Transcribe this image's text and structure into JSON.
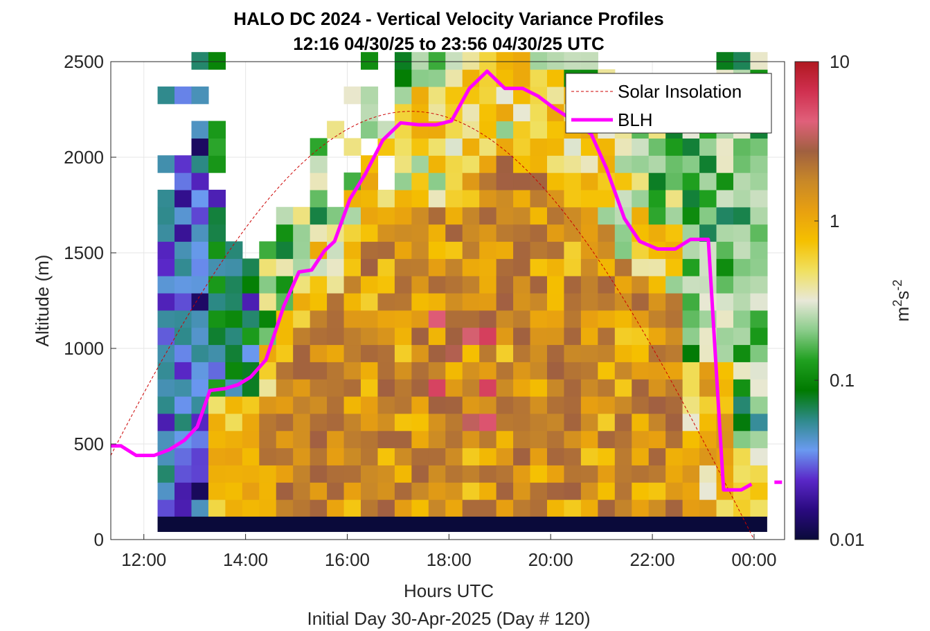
{
  "chart_data": {
    "type": "heatmap",
    "title": "HALO DC 2024 - Vertical Velocity Variance Profiles",
    "subtitle": "12:16 04/30/25 to 23:56 04/30/25  UTC",
    "xlabel": "Hours UTC",
    "xlabel2": "Initial Day 30-Apr-2025 (Day # 120)",
    "ylabel": "Altitude (m)",
    "xlim": [
      11.35,
      24.6
    ],
    "ylim": [
      0,
      2500
    ],
    "x_ticks": [
      12,
      14,
      16,
      18,
      20,
      22,
      24
    ],
    "x_tick_labels": [
      "12:00",
      "14:00",
      "16:00",
      "18:00",
      "20:00",
      "22:00",
      "00:00"
    ],
    "y_ticks": [
      0,
      500,
      1000,
      1500,
      2000,
      2500
    ],
    "y_tick_labels": [
      "0",
      "500",
      "1000",
      "1500",
      "2000",
      "2500"
    ],
    "grid": true,
    "colorbar": {
      "label": "m²s⁻²",
      "label_base": "m",
      "label_exp1": "2",
      "label_mid": "s",
      "label_exp2": "-2",
      "scale": "log",
      "range": [
        0.01,
        10
      ],
      "ticks": [
        0.01,
        0.1,
        1,
        10
      ],
      "tick_labels": [
        "0.01",
        "0.1",
        "1",
        "10"
      ],
      "colors": [
        "#0a0a3a",
        "#2a0a80",
        "#5a28c8",
        "#6a9af0",
        "#2e8a8a",
        "#007a00",
        "#20a020",
        "#8acc8a",
        "#e8e8d8",
        "#f0e060",
        "#f5c000",
        "#e8a010",
        "#c88828",
        "#a06040",
        "#e0607a",
        "#d03050",
        "#b01820"
      ]
    },
    "legend": {
      "position": "top-right",
      "entries": [
        {
          "label": "Solar Insolation",
          "color": "#cc0000",
          "style": "dashed"
        },
        {
          "label": "BLH",
          "color": "#ff00ff",
          "style": "solid"
        }
      ]
    },
    "heatmap": {
      "time_start": 12.27,
      "time_step": 0.333,
      "alt_start": 120,
      "alt_step": 90,
      "columns": 36,
      "rows": 27,
      "ground_band_value": 0.01,
      "description_of_values": "Vertical velocity variance (m^2 s^-2) per time/altitude bin; low (~0.01-0.05) before 13:30 UTC, rising to ~1-3 in the afternoon boundary layer below ~1500-2000 m, decaying after 23:00 UTC."
    },
    "series": [
      {
        "name": "BLH",
        "x": [
          11.35,
          11.55,
          11.85,
          12.2,
          12.5,
          12.8,
          13.05,
          13.3,
          13.6,
          13.85,
          14.1,
          14.4,
          14.75,
          15.05,
          15.3,
          15.55,
          15.75,
          16.05,
          16.35,
          16.7,
          17.05,
          17.4,
          17.75,
          18.05,
          18.4,
          18.75,
          19.1,
          19.45,
          19.75,
          20.05,
          20.4,
          20.8,
          21.1,
          21.45,
          21.75,
          22.1,
          22.45,
          22.75,
          23.1,
          23.4,
          23.75,
          23.95,
          24.4,
          24.55
        ],
        "y": [
          490,
          490,
          440,
          440,
          470,
          520,
          590,
          780,
          790,
          810,
          850,
          940,
          1220,
          1400,
          1410,
          1510,
          1560,
          1780,
          1910,
          2090,
          2180,
          2170,
          2170,
          2190,
          2360,
          2450,
          2360,
          2360,
          2320,
          2260,
          2200,
          2120,
          1940,
          1680,
          1560,
          1520,
          1520,
          1570,
          1570,
          260,
          260,
          290,
          300,
          300
        ]
      },
      {
        "name": "Solar Insolation",
        "x": [
          11.35,
          24.6
        ],
        "y": [
          500,
          0
        ],
        "shape": "sine arch peaking ~2240 at ~17.25 UTC, reaching 0 at ~24.0 UTC"
      }
    ]
  }
}
